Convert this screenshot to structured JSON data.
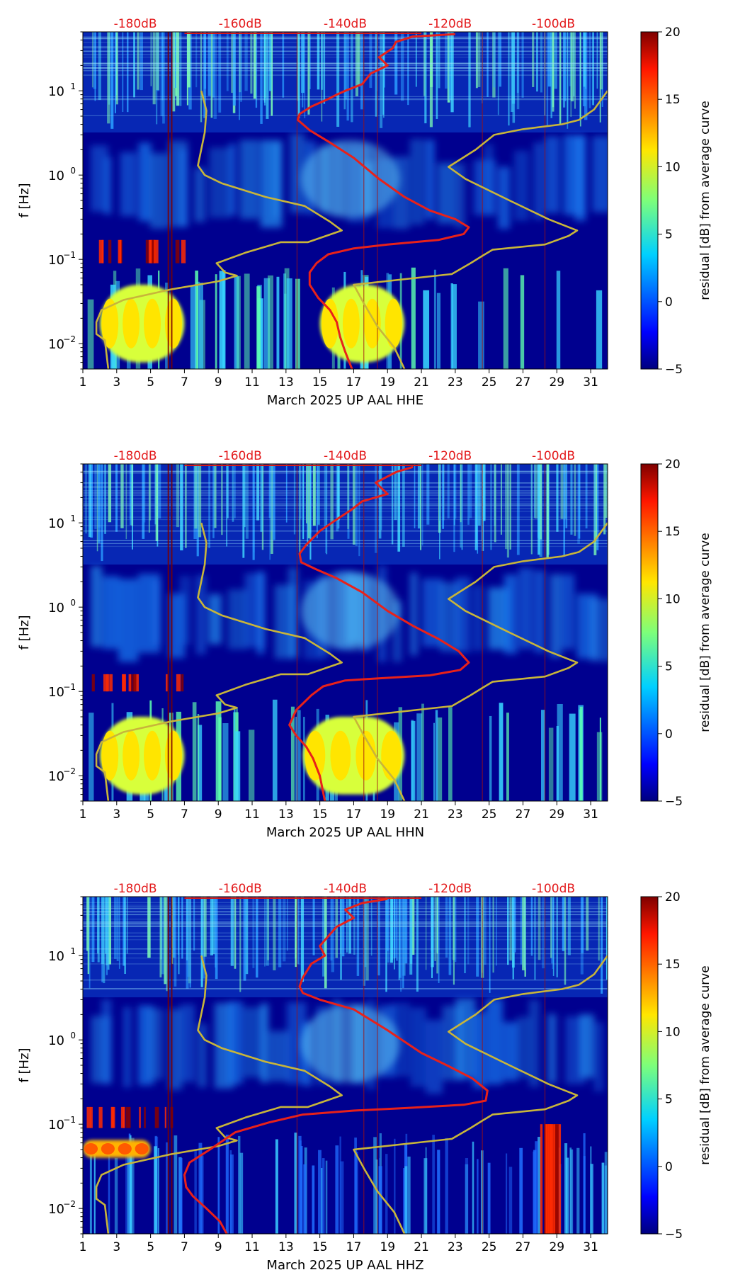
{
  "colors": {
    "bg": "#ffffff",
    "axis": "#000000",
    "db_labels": "#e31a1c",
    "noise_model": "#c8b53a",
    "avg_curve": "#e8211a"
  },
  "shared": {
    "ylabel": "f [Hz]",
    "colorbar_label": "residual [dB] from average curve",
    "colorbar_ticks": [
      "−5",
      "0",
      "5",
      "10",
      "15",
      "20"
    ],
    "colorbar_range": [
      -5,
      20
    ],
    "y_ticks": [
      {
        "base": "10",
        "exp": "−2",
        "value": 0.01
      },
      {
        "base": "10",
        "exp": "−1",
        "value": 0.1
      },
      {
        "base": "10",
        "exp": "0",
        "value": 1
      },
      {
        "base": "10",
        "exp": "1",
        "value": 10
      }
    ],
    "y_range_hz": [
      0.005,
      50
    ],
    "x_ticks": [
      "1",
      "3",
      "5",
      "7",
      "9",
      "11",
      "13",
      "15",
      "17",
      "19",
      "21",
      "23",
      "25",
      "27",
      "29",
      "31"
    ],
    "x_range_day": [
      1,
      32
    ],
    "db_labels": [
      "-180dB",
      "-160dB",
      "-140dB",
      "-120dB",
      "-100dB"
    ],
    "db_label_days": [
      4.1,
      10.3,
      16.5,
      22.7,
      28.8
    ],
    "noise_model_high": [
      [
        8.0,
        10
      ],
      [
        8.3,
        5.8
      ],
      [
        8.2,
        3.2
      ],
      [
        7.8,
        1.3
      ],
      [
        8.2,
        1.0
      ],
      [
        9.2,
        0.8
      ],
      [
        11.8,
        0.55
      ],
      [
        14.1,
        0.43
      ],
      [
        15.6,
        0.28
      ],
      [
        16.3,
        0.22
      ],
      [
        14.3,
        0.16
      ],
      [
        12.7,
        0.16
      ],
      [
        10.6,
        0.12
      ],
      [
        8.9,
        0.09
      ],
      [
        9.4,
        0.07
      ],
      [
        10.1,
        0.064
      ],
      [
        9.0,
        0.055
      ],
      [
        6.2,
        0.044
      ],
      [
        3.4,
        0.033
      ],
      [
        2.1,
        0.025
      ],
      [
        1.8,
        0.018
      ],
      [
        1.8,
        0.013
      ],
      [
        2.3,
        0.011
      ],
      [
        2.5,
        0.005
      ]
    ],
    "noise_model_low": [
      [
        32.0,
        10
      ],
      [
        31.2,
        6.0
      ],
      [
        30.3,
        4.5
      ],
      [
        29.3,
        4.0
      ],
      [
        27.0,
        3.5
      ],
      [
        25.3,
        3.0
      ],
      [
        24.2,
        2.0
      ],
      [
        22.6,
        1.25
      ],
      [
        23.6,
        0.9
      ],
      [
        26.2,
        0.5
      ],
      [
        28.5,
        0.3
      ],
      [
        30.2,
        0.22
      ],
      [
        29.7,
        0.19
      ],
      [
        28.3,
        0.15
      ],
      [
        25.2,
        0.13
      ],
      [
        24.6,
        0.11
      ],
      [
        23.9,
        0.09
      ],
      [
        22.8,
        0.067
      ],
      [
        17.0,
        0.05
      ],
      [
        17.6,
        0.03
      ],
      [
        18.4,
        0.016
      ],
      [
        19.4,
        0.009
      ],
      [
        20.0,
        0.005
      ]
    ]
  },
  "panels": [
    {
      "xlabel": "March 2025 UP AAL  HHE",
      "chart_data": {
        "type": "heatmap",
        "title": "",
        "xlabel": "March 2025 UP AAL  HHE",
        "ylabel": "f [Hz]",
        "x_range": [
          1,
          32
        ],
        "y_range": [
          0.005,
          50
        ],
        "y_scale": "log",
        "colorbar_range": [
          -5,
          20
        ],
        "colorbar_label": "residual [dB] from average curve",
        "db_labels": [
          "-180dB",
          "-160dB",
          "-140dB",
          "-120dB",
          "-100dB"
        ],
        "high_residual_bands": [
          {
            "days": [
              1.0,
              7.0
            ],
            "freq_hz": [
              0.09,
              0.17
            ],
            "residual_db": 18
          },
          {
            "days": [
              15.0,
              20.0
            ],
            "freq_hz": [
              0.006,
              0.05
            ],
            "residual_db": 9
          },
          {
            "days": [
              2.0,
              7.0
            ],
            "freq_hz": [
              0.006,
              0.05
            ],
            "residual_db": 10
          }
        ],
        "series": [
          {
            "name": "average curve",
            "points": [
              [
                23.0,
                47
              ],
              [
                20.5,
                44
              ],
              [
                19.5,
                38
              ],
              [
                19.3,
                32
              ],
              [
                18.5,
                25
              ],
              [
                19.0,
                20
              ],
              [
                18.0,
                16
              ],
              [
                17.5,
                12
              ],
              [
                16.5,
                10
              ],
              [
                16.0,
                9
              ],
              [
                15.5,
                8
              ],
              [
                14.5,
                6.5
              ],
              [
                13.8,
                5.3
              ],
              [
                13.7,
                4.5
              ],
              [
                14.0,
                4.0
              ],
              [
                14.4,
                3.4
              ],
              [
                15.5,
                2.5
              ],
              [
                17.0,
                1.6
              ],
              [
                18.5,
                0.9
              ],
              [
                20.0,
                0.55
              ],
              [
                21.5,
                0.38
              ],
              [
                23.0,
                0.3
              ],
              [
                23.8,
                0.24
              ],
              [
                23.5,
                0.2
              ],
              [
                22.0,
                0.17
              ],
              [
                19.0,
                0.15
              ],
              [
                17.0,
                0.135
              ],
              [
                15.5,
                0.115
              ],
              [
                14.8,
                0.09
              ],
              [
                14.4,
                0.07
              ],
              [
                14.4,
                0.05
              ],
              [
                14.9,
                0.035
              ],
              [
                15.6,
                0.025
              ],
              [
                16.0,
                0.018
              ],
              [
                16.2,
                0.012
              ],
              [
                16.5,
                0.008
              ],
              [
                16.9,
                0.005
              ]
            ]
          },
          {
            "name": "noise model high",
            "ref": "shared.noise_model_high"
          },
          {
            "name": "noise model low",
            "ref": "shared.noise_model_low"
          }
        ]
      }
    },
    {
      "xlabel": "March 2025 UP AAL  HHN",
      "chart_data": {
        "type": "heatmap",
        "title": "",
        "xlabel": "March 2025 UP AAL  HHN",
        "ylabel": "f [Hz]",
        "x_range": [
          1,
          32
        ],
        "y_range": [
          0.005,
          50
        ],
        "y_scale": "log",
        "colorbar_range": [
          -5,
          20
        ],
        "colorbar_label": "residual [dB] from average curve",
        "db_labels": [
          "-180dB",
          "-160dB",
          "-140dB",
          "-120dB",
          "-100dB"
        ],
        "high_residual_bands": [
          {
            "days": [
              1.0,
              7.0
            ],
            "freq_hz": [
              0.1,
              0.16
            ],
            "residual_db": 18
          },
          {
            "days": [
              14.0,
              20.0
            ],
            "freq_hz": [
              0.006,
              0.05
            ],
            "residual_db": 9
          },
          {
            "days": [
              2.0,
              7.0
            ],
            "freq_hz": [
              0.006,
              0.05
            ],
            "residual_db": 10
          }
        ],
        "series": [
          {
            "name": "average curve",
            "points": [
              [
                20.5,
                46
              ],
              [
                19.5,
                40
              ],
              [
                18.3,
                30
              ],
              [
                19.0,
                22
              ],
              [
                17.5,
                18
              ],
              [
                16.8,
                14
              ],
              [
                16.0,
                11
              ],
              [
                15.0,
                8
              ],
              [
                14.2,
                5.5
              ],
              [
                13.8,
                4.3
              ],
              [
                13.9,
                3.4
              ],
              [
                14.8,
                2.8
              ],
              [
                16.0,
                2.2
              ],
              [
                17.5,
                1.5
              ],
              [
                19.0,
                0.9
              ],
              [
                20.5,
                0.6
              ],
              [
                22.0,
                0.42
              ],
              [
                23.2,
                0.3
              ],
              [
                23.8,
                0.22
              ],
              [
                23.3,
                0.18
              ],
              [
                21.5,
                0.155
              ],
              [
                19.0,
                0.145
              ],
              [
                16.5,
                0.135
              ],
              [
                15.2,
                0.115
              ],
              [
                14.5,
                0.09
              ],
              [
                13.6,
                0.06
              ],
              [
                13.2,
                0.04
              ],
              [
                13.6,
                0.03
              ],
              [
                14.2,
                0.022
              ],
              [
                14.6,
                0.016
              ],
              [
                15.0,
                0.01
              ],
              [
                15.3,
                0.005
              ]
            ]
          },
          {
            "name": "noise model high",
            "ref": "shared.noise_model_high"
          },
          {
            "name": "noise model low",
            "ref": "shared.noise_model_low"
          }
        ]
      }
    },
    {
      "xlabel": "March 2025 UP AAL  HHZ",
      "chart_data": {
        "type": "heatmap",
        "title": "",
        "xlabel": "March 2025 UP AAL  HHZ",
        "ylabel": "f [Hz]",
        "x_range": [
          1,
          32
        ],
        "y_range": [
          0.005,
          50
        ],
        "y_scale": "log",
        "colorbar_range": [
          -5,
          20
        ],
        "colorbar_label": "residual [dB] from average curve",
        "db_labels": [
          "-180dB",
          "-160dB",
          "-140dB",
          "-120dB",
          "-100dB"
        ],
        "high_residual_bands": [
          {
            "days": [
              1.0,
              7.0
            ],
            "freq_hz": [
              0.09,
              0.16
            ],
            "residual_db": 18
          },
          {
            "days": [
              1.0,
              5.0
            ],
            "freq_hz": [
              0.04,
              0.065
            ],
            "residual_db": 15
          },
          {
            "days": [
              28.0,
              29.0
            ],
            "freq_hz": [
              0.005,
              0.1
            ],
            "residual_db": 20
          }
        ],
        "series": [
          {
            "name": "average curve",
            "points": [
              [
                19.0,
                47
              ],
              [
                17.5,
                42
              ],
              [
                16.5,
                35
              ],
              [
                17.0,
                28
              ],
              [
                16.0,
                22
              ],
              [
                15.5,
                17
              ],
              [
                15.0,
                13
              ],
              [
                15.3,
                10
              ],
              [
                14.5,
                8
              ],
              [
                14.0,
                5.5
              ],
              [
                13.8,
                4.3
              ],
              [
                14.0,
                3.6
              ],
              [
                15.0,
                3.0
              ],
              [
                17.0,
                2.3
              ],
              [
                19.0,
                1.3
              ],
              [
                21.0,
                0.7
              ],
              [
                22.5,
                0.5
              ],
              [
                24.0,
                0.35
              ],
              [
                24.9,
                0.25
              ],
              [
                24.8,
                0.19
              ],
              [
                23.5,
                0.17
              ],
              [
                20.0,
                0.155
              ],
              [
                17.0,
                0.145
              ],
              [
                14.0,
                0.13
              ],
              [
                12.0,
                0.105
              ],
              [
                10.0,
                0.08
              ],
              [
                8.5,
                0.05
              ],
              [
                7.3,
                0.035
              ],
              [
                7.0,
                0.025
              ],
              [
                7.1,
                0.018
              ],
              [
                7.5,
                0.014
              ],
              [
                8.3,
                0.01
              ],
              [
                9.1,
                0.007
              ],
              [
                9.5,
                0.005
              ]
            ]
          },
          {
            "name": "noise model high",
            "ref": "shared.noise_model_high"
          },
          {
            "name": "noise model low",
            "ref": "shared.noise_model_low"
          }
        ]
      }
    }
  ]
}
